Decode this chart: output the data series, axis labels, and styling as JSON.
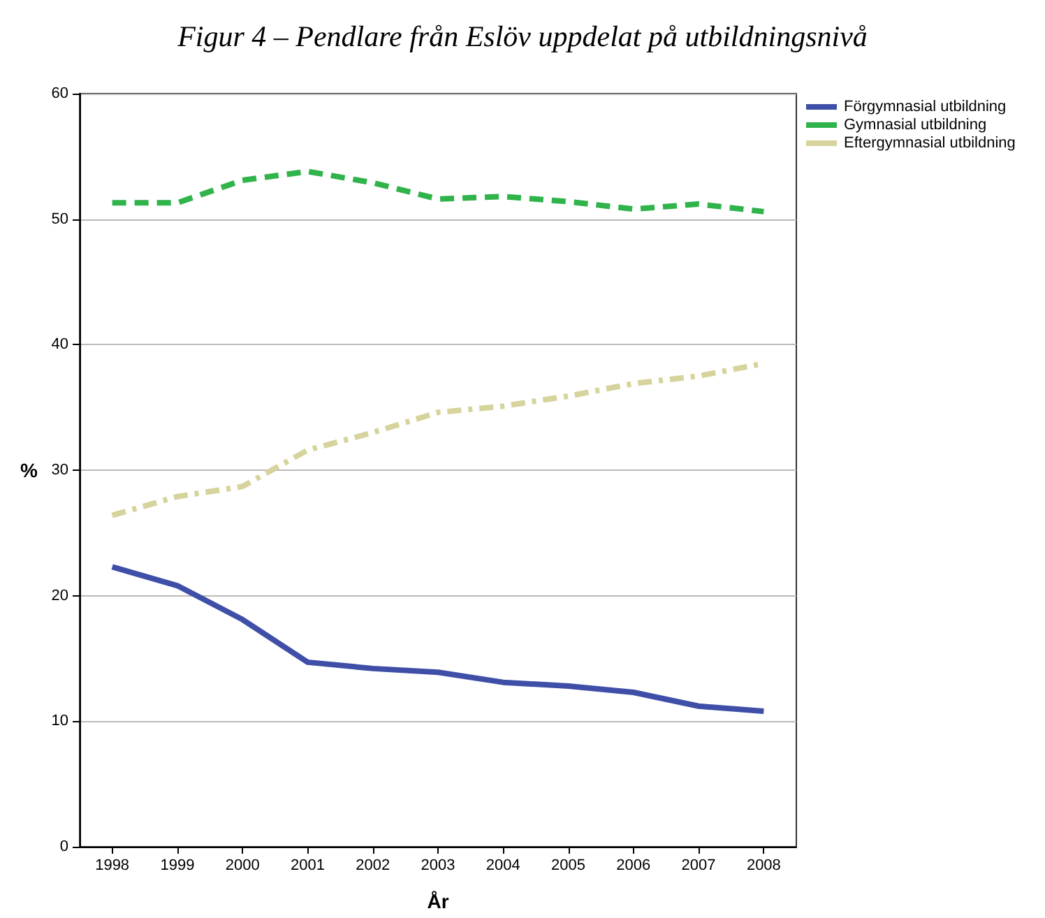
{
  "chart_data": {
    "type": "line",
    "title": "Figur 4 – Pendlare från Eslöv uppdelat på utbildningsnivå",
    "xlabel": "År",
    "ylabel": "%",
    "categories": [
      "1998",
      "1999",
      "2000",
      "2001",
      "2002",
      "2003",
      "2004",
      "2005",
      "2006",
      "2007",
      "2008"
    ],
    "series": [
      {
        "name": "Förgymnasial utbildning",
        "color": "#3f4fa8",
        "line_style": "solid",
        "values": [
          22.3,
          20.8,
          18.1,
          14.7,
          14.2,
          13.9,
          13.1,
          12.8,
          12.3,
          11.2,
          10.8
        ]
      },
      {
        "name": "Gymnasial utbildning",
        "color": "#2fb34a",
        "line_style": "dashed",
        "values": [
          51.3,
          51.3,
          53.1,
          53.8,
          52.9,
          51.6,
          51.8,
          51.4,
          50.8,
          51.2,
          50.6
        ]
      },
      {
        "name": "Eftergymnasial utbildning",
        "color": "#d6d39c",
        "line_style": "dashdot",
        "values": [
          26.4,
          27.9,
          28.7,
          31.6,
          33.0,
          34.6,
          35.1,
          35.9,
          36.9,
          37.5,
          38.5
        ]
      }
    ],
    "ylim": [
      0,
      60
    ],
    "yticks": [
      0,
      10,
      20,
      30,
      40,
      50,
      60
    ],
    "grid": "y",
    "legend": "top right",
    "marker": "none"
  }
}
